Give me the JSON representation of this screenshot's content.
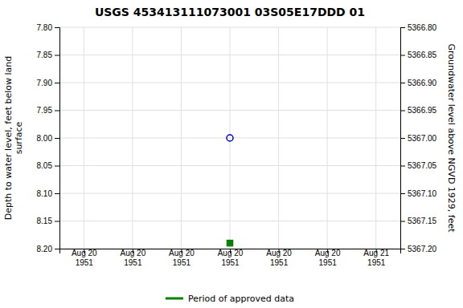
{
  "chart_data": {
    "type": "scatter",
    "title": "USGS 453413111073001 03S05E17DDD 01",
    "y_label": "Depth to water level, feet below land\nsurface",
    "y2_label": "Groundwater level above NGVD 1929, feet",
    "categories": [
      "Aug 20\n1951",
      "Aug 20\n1951",
      "Aug 20\n1951",
      "Aug 20\n1951",
      "Aug 20\n1951",
      "Aug 20\n1951",
      "Aug 21\n1951"
    ],
    "series": [
      {
        "color": "#0000cc",
        "marker": "circle-open",
        "values": [
          null,
          null,
          null,
          8.0,
          null,
          null,
          null
        ]
      },
      {
        "name": "Period of approved data",
        "color": "#008000",
        "marker": "square",
        "values": [
          null,
          null,
          null,
          8.19,
          null,
          null,
          null
        ]
      }
    ],
    "ylim": [
      8.2,
      7.8
    ],
    "yticks": [
      {
        "value": 7.8,
        "label": "7.80"
      },
      7.85,
      {
        "value": 7.9,
        "label": "7.90"
      },
      7.95,
      {
        "value": 8.0,
        "label": "8.00"
      },
      8.05,
      {
        "value": 8.1,
        "label": "8.10"
      },
      8.15,
      {
        "value": 8.2,
        "label": "8.20"
      }
    ],
    "y2lim": [
      5367.2,
      5366.8
    ],
    "y2ticks": [
      {
        "value": 5367.2,
        "label": "5367.20"
      },
      5367.15,
      {
        "value": 5367.1,
        "label": "5367.10"
      },
      5367.05,
      {
        "value": 5367.0,
        "label": "5367.00"
      },
      5366.95,
      {
        "value": 5366.9,
        "label": "5366.90"
      },
      5366.85,
      {
        "value": 5366.8,
        "label": "5366.80"
      }
    ],
    "grid": true,
    "legend": "bottom"
  }
}
